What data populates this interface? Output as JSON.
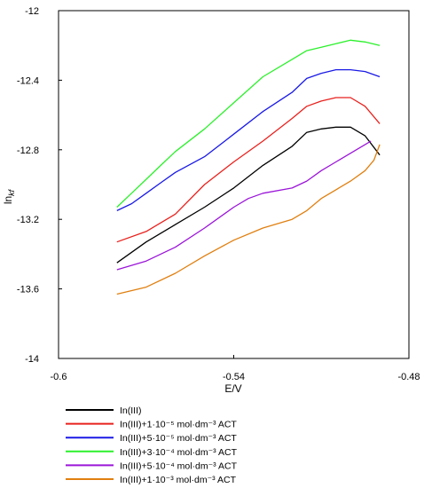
{
  "chart_data": {
    "type": "line",
    "xlabel": "E/V",
    "ylabel_main": "ln",
    "ylabel_sub": "kf",
    "xlim": [
      -0.6,
      -0.48
    ],
    "ylim": [
      -14,
      -12
    ],
    "x_ticks": [
      -0.6,
      -0.54,
      -0.48
    ],
    "x_tick_labels": [
      "-0.6",
      "-0.54",
      "-0.48"
    ],
    "y_ticks": [
      -12,
      -12.4,
      -12.8,
      -13.2,
      -13.6,
      -14
    ],
    "y_tick_labels": [
      "-12",
      "-12.4",
      "-12.8",
      "-13.2",
      "-13.6",
      "-14"
    ],
    "grid": false,
    "legend_position": "bottom",
    "series": [
      {
        "name": "In(III)",
        "color": "#000000",
        "x": [
          -0.58,
          -0.57,
          -0.56,
          -0.55,
          -0.54,
          -0.53,
          -0.52,
          -0.515,
          -0.51,
          -0.505,
          -0.5,
          -0.495,
          -0.49
        ],
        "y": [
          -13.45,
          -13.33,
          -13.23,
          -13.13,
          -13.02,
          -12.89,
          -12.78,
          -12.7,
          -12.68,
          -12.67,
          -12.67,
          -12.72,
          -12.83
        ]
      },
      {
        "name": "In(III)+1·10⁻⁵ mol·dm⁻³ ACT",
        "color": "#e8211d",
        "x": [
          -0.58,
          -0.57,
          -0.56,
          -0.55,
          -0.54,
          -0.53,
          -0.52,
          -0.515,
          -0.51,
          -0.505,
          -0.5,
          -0.495,
          -0.49
        ],
        "y": [
          -13.33,
          -13.27,
          -13.17,
          -13.0,
          -12.87,
          -12.75,
          -12.62,
          -12.55,
          -12.52,
          -12.5,
          -12.5,
          -12.55,
          -12.65
        ]
      },
      {
        "name": "In(III)+5·10⁻⁵ mol·dm⁻³ ACT",
        "color": "#1a1ae6",
        "x": [
          -0.58,
          -0.575,
          -0.57,
          -0.565,
          -0.56,
          -0.55,
          -0.54,
          -0.53,
          -0.52,
          -0.515,
          -0.51,
          -0.505,
          -0.5,
          -0.495,
          -0.49
        ],
        "y": [
          -13.15,
          -13.11,
          -13.05,
          -12.99,
          -12.93,
          -12.84,
          -12.71,
          -12.58,
          -12.47,
          -12.39,
          -12.36,
          -12.34,
          -12.34,
          -12.35,
          -12.38
        ]
      },
      {
        "name": "In(III)+3·10⁻⁴ mol·dm⁻³ ACT",
        "color": "#2bf02b",
        "x": [
          -0.58,
          -0.575,
          -0.57,
          -0.565,
          -0.56,
          -0.55,
          -0.54,
          -0.53,
          -0.52,
          -0.515,
          -0.51,
          -0.505,
          -0.5,
          -0.495,
          -0.49
        ],
        "y": [
          -13.13,
          -13.05,
          -12.97,
          -12.89,
          -12.81,
          -12.68,
          -12.53,
          -12.38,
          -12.28,
          -12.23,
          -12.21,
          -12.19,
          -12.17,
          -12.18,
          -12.2
        ]
      },
      {
        "name": "In(III)+5·10⁻⁴ mol·dm⁻³ ACT",
        "color": "#9b16d9",
        "x": [
          -0.58,
          -0.57,
          -0.56,
          -0.55,
          -0.54,
          -0.535,
          -0.53,
          -0.52,
          -0.515,
          -0.51,
          -0.505,
          -0.5,
          -0.495,
          -0.493
        ],
        "y": [
          -13.49,
          -13.44,
          -13.36,
          -13.25,
          -13.13,
          -13.08,
          -13.05,
          -13.02,
          -12.98,
          -12.92,
          -12.87,
          -12.82,
          -12.77,
          -12.75
        ]
      },
      {
        "name": "In(III)+1·10⁻³ mol·dm⁻³ ACT",
        "color": "#e07f0f",
        "x": [
          -0.58,
          -0.57,
          -0.56,
          -0.55,
          -0.54,
          -0.53,
          -0.52,
          -0.515,
          -0.51,
          -0.505,
          -0.5,
          -0.495,
          -0.492,
          -0.49
        ],
        "y": [
          -13.63,
          -13.59,
          -13.51,
          -13.41,
          -13.32,
          -13.25,
          -13.2,
          -13.15,
          -13.08,
          -13.03,
          -12.98,
          -12.92,
          -12.86,
          -12.77
        ]
      }
    ]
  }
}
